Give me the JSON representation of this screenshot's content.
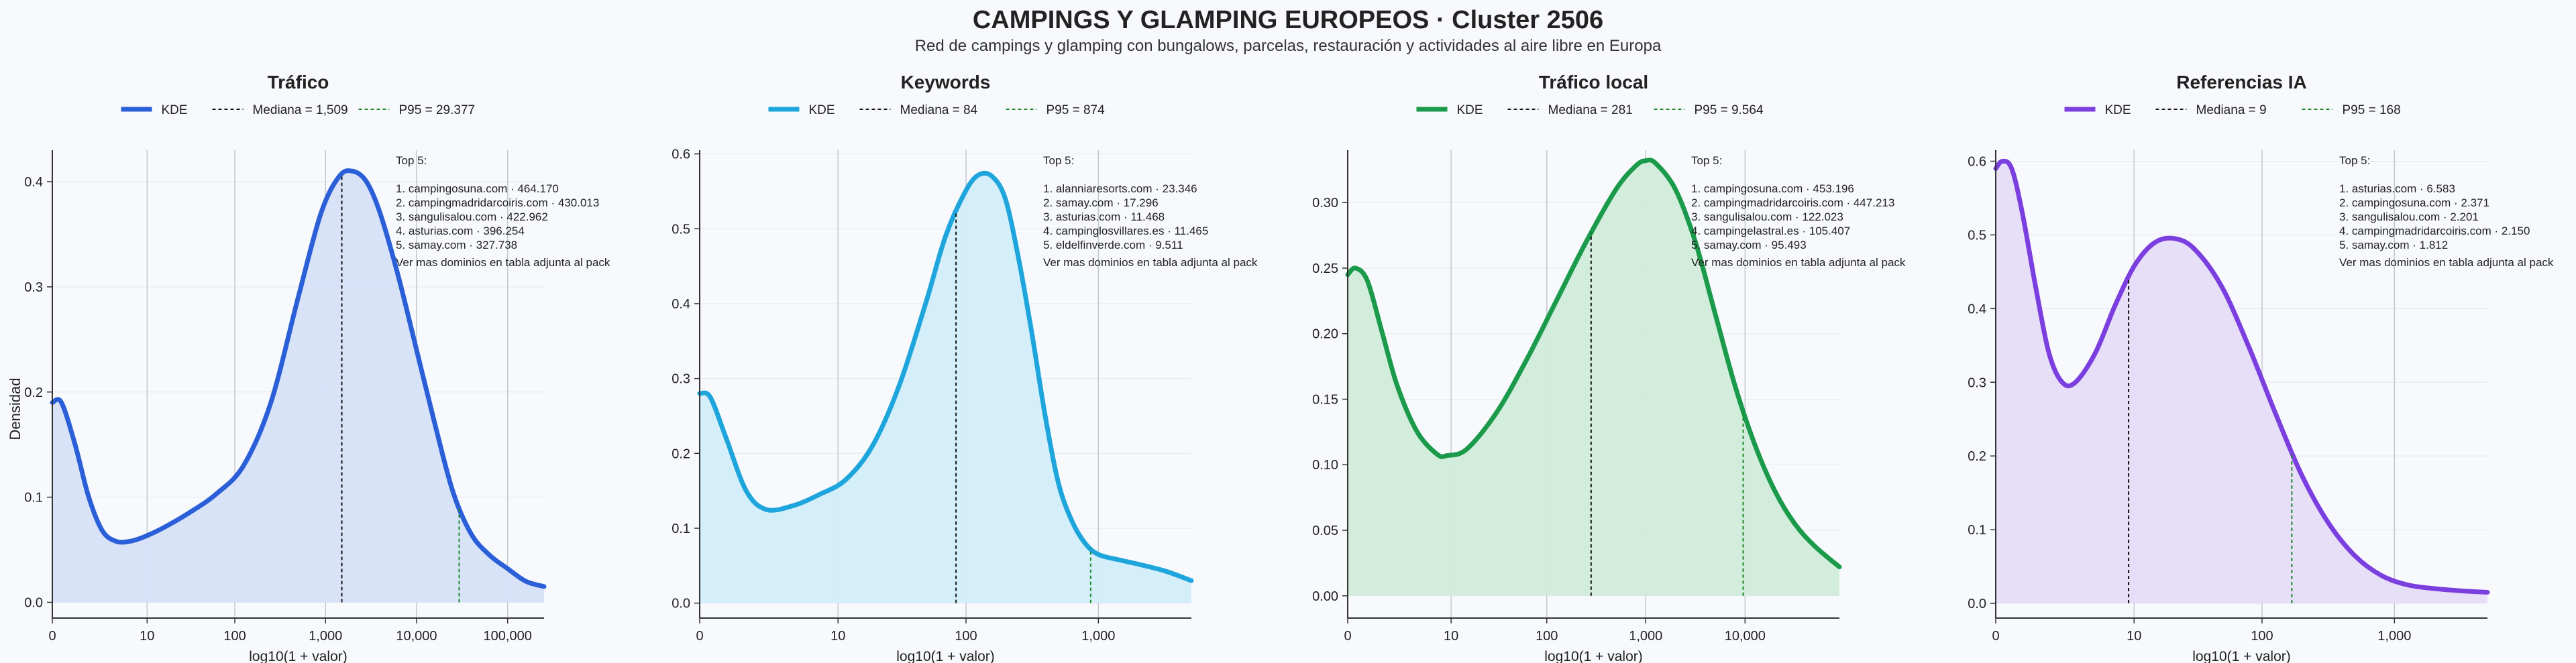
{
  "figure": {
    "title": "CAMPINGS Y GLAMPING EUROPEOS · Cluster 2506",
    "subtitle": "Red de campings y glamping con bungalows, parcelas, restauración y actividades al aire libre en Europa",
    "ylabel": "Densidad"
  },
  "chart_data": [
    {
      "type": "area",
      "title": "Tráfico",
      "xlabel": "log10(1 + valor)",
      "color": "#2a5fd8",
      "fill": "#d6e2f8",
      "legend": [
        "KDE",
        "Mediana = 1,509",
        "P95 = 29.377"
      ],
      "xlim": [
        0,
        5.4
      ],
      "ylim": [
        -0.015,
        0.43
      ],
      "xticks": [
        {
          "v": 0,
          "l": "0"
        },
        {
          "v": 1.041,
          "l": "10"
        },
        {
          "v": 2.004,
          "l": "100"
        },
        {
          "v": 3,
          "l": "1,000"
        },
        {
          "v": 4,
          "l": "10,000"
        },
        {
          "v": 5,
          "l": "100,000"
        }
      ],
      "yticks": [
        {
          "v": 0,
          "l": "0.0"
        },
        {
          "v": 0.1,
          "l": "0.1"
        },
        {
          "v": 0.2,
          "l": "0.2"
        },
        {
          "v": 0.3,
          "l": "0.3"
        },
        {
          "v": 0.4,
          "l": "0.4"
        }
      ],
      "kde": {
        "x": [
          0,
          0.1,
          0.25,
          0.4,
          0.55,
          0.7,
          0.85,
          1.0,
          1.2,
          1.5,
          1.8,
          2.1,
          2.4,
          2.7,
          2.95,
          3.15,
          3.3,
          3.45,
          3.6,
          3.8,
          4.0,
          4.2,
          4.4,
          4.6,
          4.8,
          5.0,
          5.2,
          5.4
        ],
        "y": [
          0.19,
          0.19,
          0.15,
          0.1,
          0.068,
          0.058,
          0.058,
          0.062,
          0.07,
          0.085,
          0.103,
          0.13,
          0.19,
          0.29,
          0.37,
          0.405,
          0.41,
          0.4,
          0.37,
          0.31,
          0.24,
          0.17,
          0.105,
          0.065,
          0.045,
          0.032,
          0.02,
          0.015
        ]
      },
      "median": {
        "x": 3.179,
        "label": "Mediana = 1,509"
      },
      "p95": {
        "x": 4.468,
        "label": "P95 = 29.377"
      },
      "top_title": "Top 5:",
      "top": [
        "1. campingosuna.com · 464.170",
        "2. campingmadridarcoiris.com · 430.013",
        "3. sangulisalou.com · 422.962",
        "4. asturias.com · 396.254",
        "5. samay.com · 327.738"
      ],
      "note": "Ver mas dominios en tabla adjunta al pack"
    },
    {
      "type": "area",
      "title": "Keywords",
      "xlabel": "log10(1 + valor)",
      "color": "#1ea5dc",
      "fill": "#d3eefa",
      "legend": [
        "KDE",
        "Mediana = 84",
        "P95 = 874"
      ],
      "xlim": [
        0,
        3.7
      ],
      "ylim": [
        -0.02,
        0.605
      ],
      "xticks": [
        {
          "v": 0,
          "l": "0"
        },
        {
          "v": 1.041,
          "l": "10"
        },
        {
          "v": 2.004,
          "l": "100"
        },
        {
          "v": 3,
          "l": "1,000"
        }
      ],
      "yticks": [
        {
          "v": 0,
          "l": "0.0"
        },
        {
          "v": 0.1,
          "l": "0.1"
        },
        {
          "v": 0.2,
          "l": "0.2"
        },
        {
          "v": 0.3,
          "l": "0.3"
        },
        {
          "v": 0.4,
          "l": "0.4"
        },
        {
          "v": 0.5,
          "l": "0.5"
        },
        {
          "v": 0.6,
          "l": "0.6"
        }
      ],
      "kde": {
        "x": [
          0,
          0.08,
          0.2,
          0.35,
          0.5,
          0.7,
          0.9,
          1.1,
          1.3,
          1.5,
          1.7,
          1.85,
          2.0,
          2.1,
          2.2,
          2.3,
          2.4,
          2.5,
          2.6,
          2.7,
          2.8,
          2.9,
          3.0,
          3.15,
          3.3,
          3.5,
          3.7
        ],
        "y": [
          0.28,
          0.275,
          0.22,
          0.15,
          0.125,
          0.13,
          0.145,
          0.165,
          0.21,
          0.29,
          0.4,
          0.49,
          0.55,
          0.572,
          0.57,
          0.54,
          0.46,
          0.36,
          0.25,
          0.16,
          0.11,
          0.08,
          0.065,
          0.058,
          0.052,
          0.043,
          0.03
        ]
      },
      "median": {
        "x": 1.929,
        "label": "Mediana = 84"
      },
      "p95": {
        "x": 2.942,
        "label": "P95 = 874"
      },
      "top_title": "Top 5:",
      "top": [
        "1. alanniaresorts.com · 23.346",
        "2. samay.com · 17.296",
        "3. asturias.com · 11.468",
        "4. campinglosvillares.es · 11.465",
        "5. eldelfinverde.com · 9.511"
      ],
      "note": "Ver mas dominios en tabla adjunta al pack"
    },
    {
      "type": "area",
      "title": "Tráfico local",
      "xlabel": "log10(1 + valor)",
      "color": "#1a9a4a",
      "fill": "#d0ecd9",
      "legend": [
        "KDE",
        "Mediana = 281",
        "P95 = 9.564"
      ],
      "xlim": [
        0,
        4.95
      ],
      "ylim": [
        -0.017,
        0.34
      ],
      "xticks": [
        {
          "v": 0,
          "l": "0"
        },
        {
          "v": 1.041,
          "l": "10"
        },
        {
          "v": 2.004,
          "l": "100"
        },
        {
          "v": 3,
          "l": "1,000"
        },
        {
          "v": 4,
          "l": "10,000"
        }
      ],
      "yticks": [
        {
          "v": 0,
          "l": "0.00"
        },
        {
          "v": 0.05,
          "l": "0.05"
        },
        {
          "v": 0.1,
          "l": "0.10"
        },
        {
          "v": 0.15,
          "l": "0.15"
        },
        {
          "v": 0.2,
          "l": "0.20"
        },
        {
          "v": 0.25,
          "l": "0.25"
        },
        {
          "v": 0.3,
          "l": "0.30"
        }
      ],
      "kde": {
        "x": [
          0,
          0.08,
          0.2,
          0.35,
          0.5,
          0.7,
          0.9,
          1.0,
          1.2,
          1.5,
          1.8,
          2.1,
          2.4,
          2.7,
          2.9,
          3.0,
          3.1,
          3.3,
          3.5,
          3.7,
          3.9,
          4.1,
          4.3,
          4.5,
          4.7,
          4.95
        ],
        "y": [
          0.245,
          0.25,
          0.24,
          0.2,
          0.16,
          0.125,
          0.108,
          0.107,
          0.112,
          0.14,
          0.18,
          0.225,
          0.27,
          0.31,
          0.328,
          0.332,
          0.33,
          0.31,
          0.27,
          0.215,
          0.16,
          0.115,
          0.08,
          0.055,
          0.038,
          0.022
        ]
      },
      "median": {
        "x": 2.45,
        "label": "Mediana = 281"
      },
      "p95": {
        "x": 3.981,
        "label": "P95 = 9.564"
      },
      "top_title": "Top 5:",
      "top": [
        "1. campingosuna.com · 453.196",
        "2. campingmadridarcoiris.com · 447.213",
        "3. sangulisalou.com · 122.023",
        "4. campingelastral.es · 105.407",
        "5. samay.com · 95.493"
      ],
      "note": "Ver mas dominios en tabla adjunta al pack"
    },
    {
      "type": "area",
      "title": "Referencias IA",
      "xlabel": "log10(1 + valor)",
      "color": "#7b3fe0",
      "fill": "#e6dcf8",
      "legend": [
        "KDE",
        "Mediana = 9",
        "P95 = 168"
      ],
      "xlim": [
        0,
        3.7
      ],
      "ylim": [
        -0.02,
        0.615
      ],
      "xticks": [
        {
          "v": 0,
          "l": "0"
        },
        {
          "v": 1.041,
          "l": "10"
        },
        {
          "v": 2.004,
          "l": "100"
        },
        {
          "v": 3,
          "l": "1,000"
        }
      ],
      "yticks": [
        {
          "v": 0,
          "l": "0.0"
        },
        {
          "v": 0.1,
          "l": "0.1"
        },
        {
          "v": 0.2,
          "l": "0.2"
        },
        {
          "v": 0.3,
          "l": "0.3"
        },
        {
          "v": 0.4,
          "l": "0.4"
        },
        {
          "v": 0.5,
          "l": "0.5"
        },
        {
          "v": 0.6,
          "l": "0.6"
        }
      ],
      "kde": {
        "x": [
          0,
          0.05,
          0.12,
          0.2,
          0.3,
          0.4,
          0.5,
          0.6,
          0.75,
          0.9,
          1.05,
          1.2,
          1.35,
          1.5,
          1.7,
          1.9,
          2.1,
          2.3,
          2.5,
          2.7,
          2.9,
          3.1,
          3.3,
          3.5,
          3.7
        ],
        "y": [
          0.59,
          0.6,
          0.59,
          0.53,
          0.43,
          0.34,
          0.3,
          0.3,
          0.34,
          0.405,
          0.46,
          0.49,
          0.495,
          0.48,
          0.43,
          0.35,
          0.26,
          0.175,
          0.11,
          0.065,
          0.038,
          0.025,
          0.02,
          0.017,
          0.015
        ]
      },
      "median": {
        "x": 1.0,
        "label": "Mediana = 9"
      },
      "p95": {
        "x": 2.228,
        "label": "P95 = 168"
      },
      "top_title": "Top 5:",
      "top": [
        "1. asturias.com · 6.583",
        "2. campingosuna.com · 2.371",
        "3. sangulisalou.com · 2.201",
        "4. campingmadridarcoiris.com · 2.150",
        "5. samay.com · 1.812"
      ],
      "note": "Ver mas dominios en tabla adjunta al pack"
    }
  ]
}
